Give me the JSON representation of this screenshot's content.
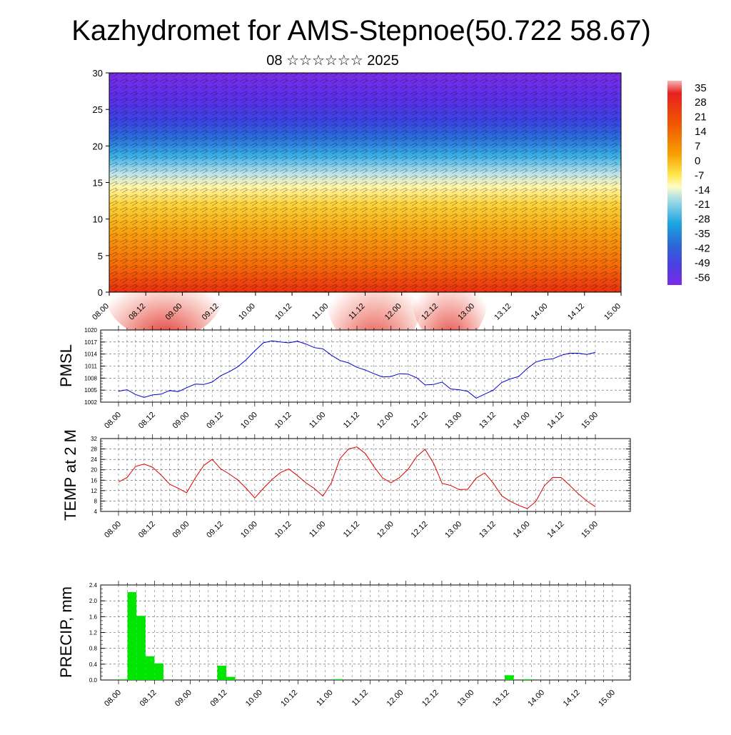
{
  "title": "Kazhydromet for AMS-Stepnoe(50.722 58.67)",
  "subtitle": "08 ☆☆☆☆☆☆ 2025",
  "time_labels": [
    "08.00",
    "08.12",
    "09.00",
    "09.12",
    "10.00",
    "10.12",
    "11.00",
    "11.12",
    "12.00",
    "12.12",
    "13.00",
    "13.12",
    "14.00",
    "14.12",
    "15.00"
  ],
  "colors": {
    "pmsl_line": "#0000cc",
    "temp_line": "#dd0000",
    "precip_bar": "#00e600",
    "grid": "#555555"
  },
  "chart_data": [
    {
      "type": "heatmap",
      "name": "cross-section",
      "ylim": [
        0,
        30
      ],
      "yticks": [
        "0",
        "5",
        "10",
        "15",
        "20",
        "25",
        "30"
      ],
      "colorbar_labels": [
        "35",
        "28",
        "21",
        "14",
        "7",
        "0",
        "-7",
        "-14",
        "-21",
        "-28",
        "-35",
        "-42",
        "-49",
        "-56"
      ],
      "colorbar_range": [
        -60,
        38
      ]
    },
    {
      "type": "line",
      "ylabel": "PMSL",
      "ylim": [
        1002,
        1020
      ],
      "yticks": [
        "1002",
        "1005",
        "1008",
        "1011",
        "1014",
        "1017",
        "1020"
      ],
      "values": [
        1004.7,
        1005.1,
        1003.9,
        1003.2,
        1003.8,
        1004.0,
        1004.9,
        1004.6,
        1005.6,
        1006.5,
        1006.4,
        1007.0,
        1008.6,
        1009.6,
        1010.8,
        1012.6,
        1014.8,
        1016.8,
        1017.3,
        1017.0,
        1016.8,
        1017.2,
        1016.5,
        1015.6,
        1015.3,
        1013.7,
        1012.4,
        1011.8,
        1010.7,
        1010.0,
        1009.1,
        1008.3,
        1008.4,
        1009.1,
        1009.0,
        1008.1,
        1006.3,
        1006.4,
        1007.0,
        1005.3,
        1005.1,
        1004.7,
        1003.0,
        1004.0,
        1005.0,
        1006.9,
        1007.8,
        1008.4,
        1010.4,
        1012.0,
        1012.6,
        1012.8,
        1013.7,
        1014.2,
        1014.2,
        1013.9,
        1014.4
      ]
    },
    {
      "type": "line",
      "ylabel": "TEMP at 2 M",
      "ylim": [
        4,
        32
      ],
      "yticks": [
        "4",
        "8",
        "12",
        "16",
        "20",
        "24",
        "28",
        "32"
      ],
      "values": [
        15.3,
        17.0,
        21.3,
        22.2,
        21.0,
        18.0,
        14.5,
        12.9,
        11.2,
        16.8,
        21.6,
        24.0,
        20.4,
        18.4,
        16.1,
        12.9,
        9.2,
        12.8,
        16.2,
        18.9,
        20.3,
        17.8,
        15.0,
        12.8,
        9.9,
        15.0,
        24.2,
        28.0,
        28.8,
        26.2,
        21.2,
        16.9,
        15.0,
        17.0,
        20.2,
        25.0,
        27.9,
        22.5,
        14.8,
        14.0,
        12.4,
        12.5,
        16.8,
        18.8,
        14.9,
        10.0,
        7.9,
        6.3,
        5.1,
        7.8,
        13.8,
        17.1,
        17.0,
        14.0,
        10.8,
        8.0,
        5.8
      ]
    },
    {
      "type": "bar",
      "ylabel": "PRECIP, mm",
      "ylim": [
        0,
        2.4
      ],
      "yticks": [
        "0.0",
        "0.4",
        "0.8",
        "1.2",
        "1.6",
        "2.0",
        "2.4"
      ],
      "values": [
        0.02,
        2.22,
        1.62,
        0.6,
        0.42,
        0,
        0,
        0,
        0,
        0,
        0,
        0.36,
        0.08,
        0,
        0,
        0,
        0,
        0,
        0,
        0,
        0,
        0,
        0,
        0,
        0.02,
        0,
        0,
        0,
        0,
        0,
        0,
        0,
        0,
        0,
        0,
        0,
        0,
        0,
        0,
        0,
        0,
        0,
        0,
        0.12,
        0,
        0.02,
        0,
        0,
        0,
        0,
        0,
        0,
        0,
        0,
        0,
        0
      ]
    }
  ]
}
